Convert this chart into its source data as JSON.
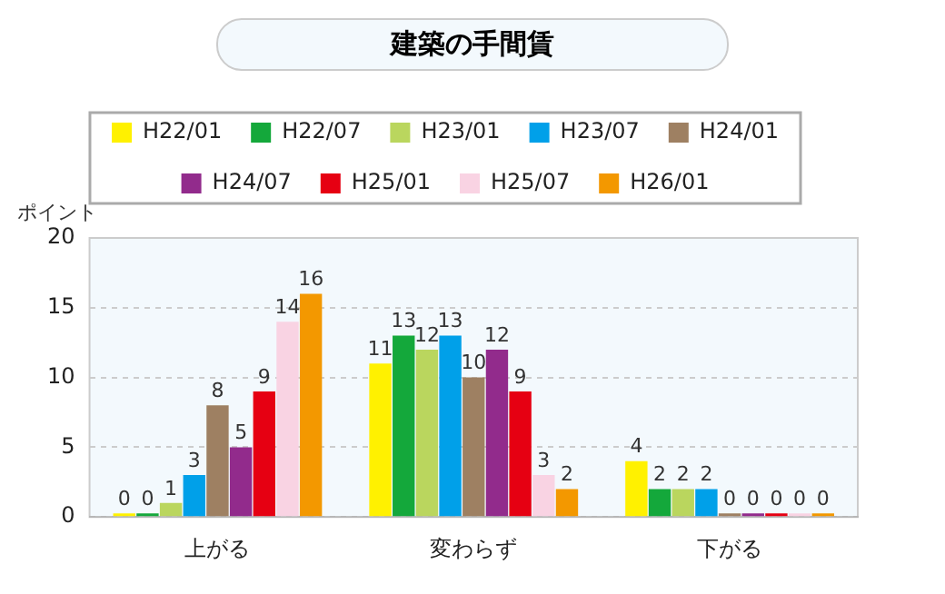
{
  "chart_data": {
    "type": "bar",
    "title": "建築の手間賃",
    "ylabel": "ポイント",
    "categories": [
      "上がる",
      "変わらず",
      "下がる"
    ],
    "series": [
      {
        "name": "H22/01",
        "color": "#fff100",
        "values": [
          0,
          11,
          4
        ]
      },
      {
        "name": "H22/07",
        "color": "#14a83b",
        "values": [
          0,
          13,
          2
        ]
      },
      {
        "name": "H23/01",
        "color": "#bad65e",
        "values": [
          1,
          12,
          2
        ]
      },
      {
        "name": "H23/07",
        "color": "#00a0e9",
        "values": [
          3,
          13,
          2
        ]
      },
      {
        "name": "H24/01",
        "color": "#9e8062",
        "values": [
          8,
          10,
          0
        ]
      },
      {
        "name": "H24/07",
        "color": "#922b8c",
        "values": [
          5,
          12,
          0
        ]
      },
      {
        "name": "H25/01",
        "color": "#e60012",
        "values": [
          9,
          9,
          0
        ]
      },
      {
        "name": "H25/07",
        "color": "#f9d3e3",
        "values": [
          14,
          3,
          0
        ]
      },
      {
        "name": "H26/01",
        "color": "#f39800",
        "values": [
          16,
          2,
          0
        ]
      }
    ],
    "ylim": [
      0,
      20
    ],
    "yticks": [
      0,
      5,
      10,
      15,
      20
    ],
    "grid": "y",
    "legend": "top",
    "data_labels": true
  }
}
